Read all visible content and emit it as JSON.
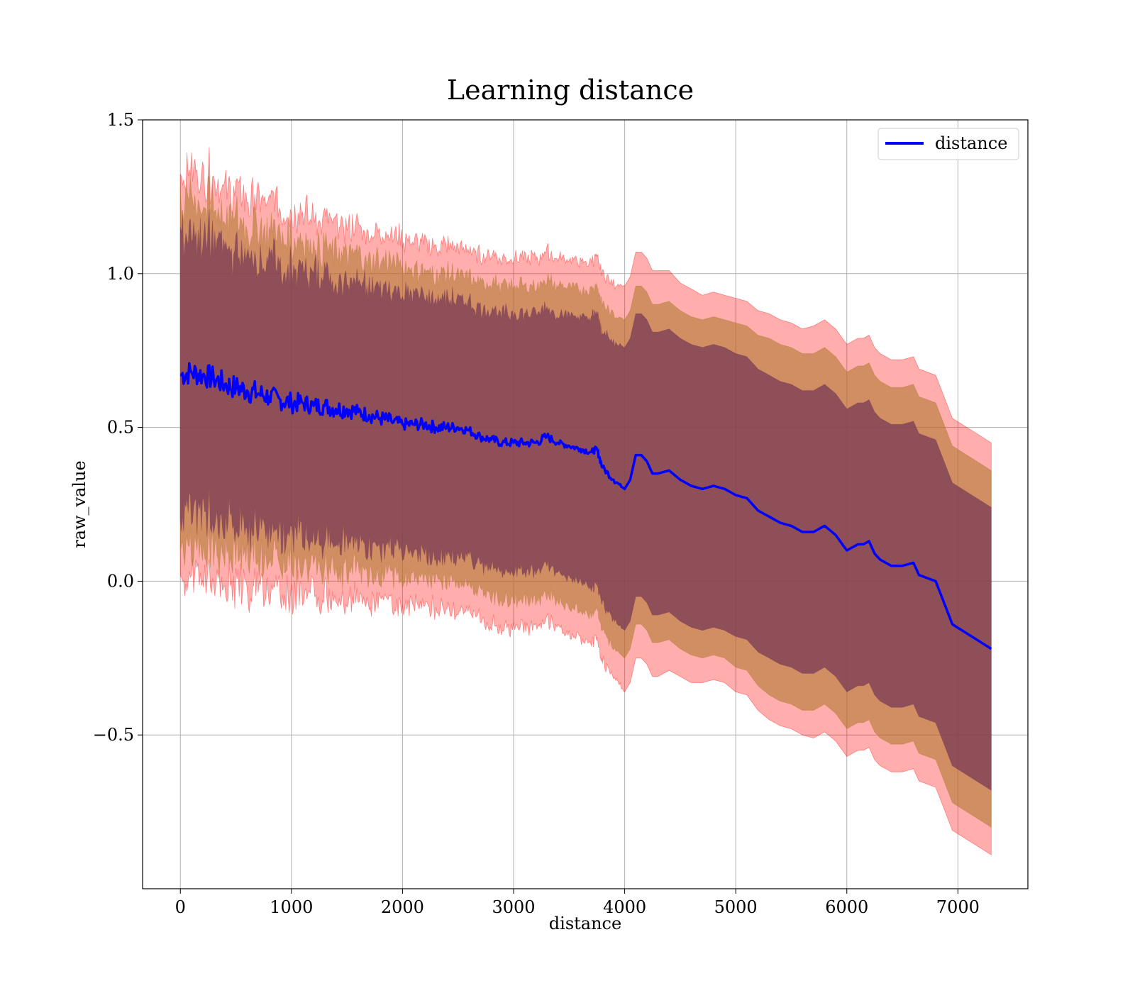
{
  "chart_data": {
    "type": "line",
    "title": "Learning distance",
    "xlabel": "distance",
    "ylabel": "raw_value",
    "xlim": [
      -340,
      7630
    ],
    "ylim": [
      -1.0,
      1.5
    ],
    "xticks": [
      0,
      1000,
      2000,
      3000,
      4000,
      5000,
      6000,
      7000
    ],
    "yticks": [
      -0.5,
      0.0,
      0.5,
      1.0,
      1.5
    ],
    "ytick_labels": [
      "−0.5",
      "0.0",
      "0.5",
      "1.0",
      "1.5"
    ],
    "grid": true,
    "legend": {
      "placement": "top-right",
      "entries": [
        "distance"
      ]
    },
    "colors": {
      "line": "#0000ff",
      "band_outer": "#ff0000",
      "band_middle": "#b07a30",
      "band_inner": "#7a3a55",
      "grid": "#b0b0b0"
    },
    "series": [
      {
        "name": "distance",
        "x": [
          0,
          100,
          200,
          300,
          400,
          500,
          600,
          700,
          800,
          900,
          1000,
          1100,
          1200,
          1300,
          1400,
          1500,
          1600,
          1700,
          1800,
          1900,
          2000,
          2100,
          2200,
          2300,
          2400,
          2500,
          2600,
          2700,
          2800,
          2900,
          3000,
          3100,
          3200,
          3300,
          3400,
          3500,
          3600,
          3700,
          3750,
          3800,
          3900,
          4000,
          4050,
          4100,
          4150,
          4200,
          4250,
          4300,
          4400,
          4500,
          4600,
          4700,
          4800,
          4900,
          5000,
          5100,
          5200,
          5300,
          5400,
          5500,
          5600,
          5700,
          5800,
          5900,
          6000,
          6100,
          6150,
          6200,
          6250,
          6300,
          6400,
          6500,
          6600,
          6650,
          6800,
          6950,
          7300
        ],
        "y": [
          0.67,
          0.68,
          0.67,
          0.66,
          0.64,
          0.63,
          0.62,
          0.61,
          0.6,
          0.59,
          0.58,
          0.58,
          0.57,
          0.57,
          0.56,
          0.56,
          0.55,
          0.54,
          0.53,
          0.52,
          0.51,
          0.51,
          0.51,
          0.5,
          0.5,
          0.5,
          0.49,
          0.47,
          0.46,
          0.45,
          0.45,
          0.45,
          0.45,
          0.47,
          0.45,
          0.44,
          0.43,
          0.42,
          0.43,
          0.37,
          0.33,
          0.3,
          0.33,
          0.41,
          0.41,
          0.39,
          0.35,
          0.35,
          0.36,
          0.33,
          0.31,
          0.3,
          0.31,
          0.3,
          0.28,
          0.27,
          0.23,
          0.21,
          0.19,
          0.18,
          0.16,
          0.16,
          0.18,
          0.15,
          0.1,
          0.12,
          0.12,
          0.13,
          0.09,
          0.07,
          0.05,
          0.05,
          0.06,
          0.02,
          0.0,
          -0.14,
          -0.22
        ],
        "noise": [
          0.04,
          0.04,
          0.04,
          0.04,
          0.04,
          0.04,
          0.04,
          0.04,
          0.035,
          0.035,
          0.035,
          0.03,
          0.03,
          0.03,
          0.03,
          0.03,
          0.025,
          0.025,
          0.025,
          0.025,
          0.02,
          0.02,
          0.02,
          0.02,
          0.02,
          0.015,
          0.015,
          0.015,
          0.015,
          0.015,
          0.015,
          0.015,
          0.015,
          0.015,
          0.01,
          0.01,
          0.01,
          0.01,
          0.01,
          0.01,
          0.01,
          0.0,
          0.0,
          0.0,
          0.0,
          0.0,
          0.0,
          0.0,
          0.0,
          0.0,
          0.0,
          0.0,
          0.0,
          0.0,
          0.0,
          0.0,
          0.0,
          0.0,
          0.0,
          0.0,
          0.0,
          0.0,
          0.0,
          0.0,
          0.0,
          0.0,
          0.0,
          0.0,
          0.0,
          0.0,
          0.0,
          0.0,
          0.0,
          0.0,
          0.0,
          0.0,
          0.0
        ],
        "bands": [
          {
            "level": "outer",
            "half_width": [
              0.66,
              0.66,
              0.65,
              0.65,
              0.64,
              0.64,
              0.63,
              0.63,
              0.63,
              0.62,
              0.62,
              0.62,
              0.61,
              0.61,
              0.61,
              0.6,
              0.6,
              0.6,
              0.6,
              0.6,
              0.6,
              0.59,
              0.59,
              0.59,
              0.59,
              0.59,
              0.59,
              0.59,
              0.6,
              0.6,
              0.6,
              0.6,
              0.6,
              0.6,
              0.6,
              0.61,
              0.61,
              0.62,
              0.62,
              0.63,
              0.64,
              0.66,
              0.66,
              0.66,
              0.66,
              0.66,
              0.66,
              0.66,
              0.65,
              0.64,
              0.64,
              0.63,
              0.63,
              0.63,
              0.64,
              0.64,
              0.65,
              0.66,
              0.66,
              0.66,
              0.66,
              0.67,
              0.67,
              0.67,
              0.67,
              0.67,
              0.67,
              0.67,
              0.67,
              0.67,
              0.67,
              0.67,
              0.67,
              0.67,
              0.67,
              0.67,
              0.67
            ]
          },
          {
            "level": "middle",
            "half_width": [
              0.57,
              0.57,
              0.56,
              0.56,
              0.55,
              0.55,
              0.54,
              0.54,
              0.54,
              0.53,
              0.53,
              0.53,
              0.52,
              0.52,
              0.52,
              0.51,
              0.51,
              0.51,
              0.51,
              0.51,
              0.51,
              0.5,
              0.5,
              0.5,
              0.5,
              0.5,
              0.5,
              0.5,
              0.51,
              0.51,
              0.51,
              0.51,
              0.51,
              0.51,
              0.51,
              0.52,
              0.52,
              0.53,
              0.53,
              0.53,
              0.54,
              0.55,
              0.55,
              0.55,
              0.55,
              0.55,
              0.55,
              0.55,
              0.55,
              0.55,
              0.55,
              0.55,
              0.55,
              0.55,
              0.56,
              0.56,
              0.57,
              0.58,
              0.58,
              0.58,
              0.58,
              0.58,
              0.58,
              0.58,
              0.58,
              0.58,
              0.58,
              0.58,
              0.58,
              0.58,
              0.58,
              0.58,
              0.58,
              0.58,
              0.58,
              0.58,
              0.58
            ]
          },
          {
            "level": "inner",
            "half_width": [
              0.46,
              0.46,
              0.45,
              0.45,
              0.45,
              0.44,
              0.44,
              0.44,
              0.44,
              0.43,
              0.43,
              0.43,
              0.43,
              0.43,
              0.43,
              0.42,
              0.42,
              0.42,
              0.42,
              0.42,
              0.42,
              0.42,
              0.42,
              0.42,
              0.42,
              0.42,
              0.42,
              0.42,
              0.42,
              0.42,
              0.42,
              0.42,
              0.42,
              0.42,
              0.42,
              0.43,
              0.43,
              0.44,
              0.44,
              0.44,
              0.45,
              0.46,
              0.46,
              0.46,
              0.46,
              0.46,
              0.46,
              0.46,
              0.46,
              0.46,
              0.46,
              0.46,
              0.46,
              0.46,
              0.46,
              0.46,
              0.46,
              0.46,
              0.46,
              0.46,
              0.46,
              0.46,
              0.46,
              0.46,
              0.46,
              0.46,
              0.46,
              0.46,
              0.46,
              0.46,
              0.46,
              0.46,
              0.46,
              0.46,
              0.46,
              0.46,
              0.46
            ]
          }
        ]
      }
    ]
  }
}
